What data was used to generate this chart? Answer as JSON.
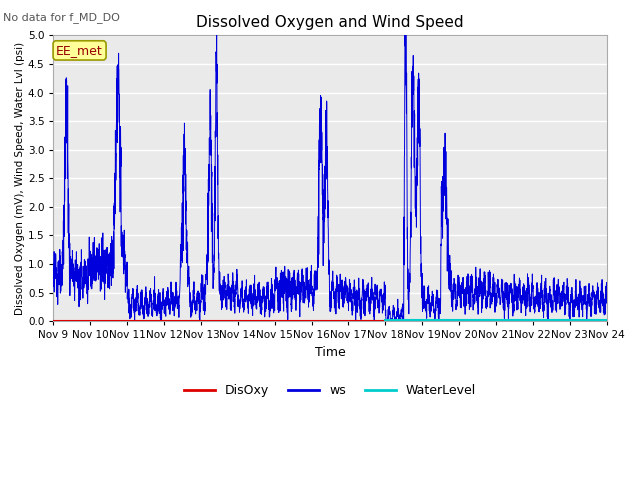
{
  "title": "Dissolved Oxygen and Wind Speed",
  "top_left_text": "No data for f_MD_DO",
  "annotation_box": "EE_met",
  "xlabel": "Time",
  "ylabel": "Dissolved Oxygen (mV), Wind Speed, Water Lvl (psi)",
  "ylim": [
    0.0,
    5.0
  ],
  "yticks": [
    0.0,
    0.5,
    1.0,
    1.5,
    2.0,
    2.5,
    3.0,
    3.5,
    4.0,
    4.5,
    5.0
  ],
  "xtick_labels": [
    "Nov 9",
    "Nov 10",
    "Nov 11",
    "Nov 12",
    "Nov 13",
    "Nov 14",
    "Nov 15",
    "Nov 16",
    "Nov 17",
    "Nov 18",
    "Nov 19",
    "Nov 20",
    "Nov 21",
    "Nov 22",
    "Nov 23",
    "Nov 24"
  ],
  "bg_color": "#eaeaea",
  "ws_color": "#0000dd",
  "disoxy_color": "#dd0000",
  "waterlevel_color": "#00cccc",
  "legend_labels": [
    "DisOxy",
    "ws",
    "WaterLevel"
  ],
  "legend_colors": [
    "#dd0000",
    "#0000dd",
    "#00cccc"
  ],
  "annotation_facecolor": "#ffff99",
  "annotation_edgecolor": "#999900",
  "annotation_textcolor": "#990000"
}
